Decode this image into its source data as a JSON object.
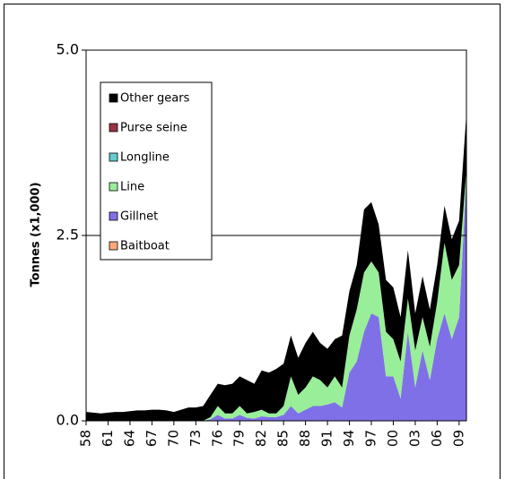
{
  "chart_data": {
    "type": "stacked_area",
    "y_label": "Tonnes (x1,000)",
    "x": [
      1958,
      1959,
      1960,
      1961,
      1962,
      1963,
      1964,
      1965,
      1966,
      1967,
      1968,
      1969,
      1970,
      1971,
      1972,
      1973,
      1974,
      1975,
      1976,
      1977,
      1978,
      1979,
      1980,
      1981,
      1982,
      1983,
      1984,
      1985,
      1986,
      1987,
      1988,
      1989,
      1990,
      1991,
      1992,
      1993,
      1994,
      1995,
      1996,
      1997,
      1998,
      1999,
      2000,
      2001,
      2002,
      2003,
      2004,
      2005,
      2006,
      2007,
      2008,
      2009,
      2010
    ],
    "xlim": [
      1958,
      2010
    ],
    "xticks": [
      {
        "value": 1958,
        "label": "58"
      },
      {
        "value": 1961,
        "label": "61"
      },
      {
        "value": 1964,
        "label": "64"
      },
      {
        "value": 1967,
        "label": "67"
      },
      {
        "value": 1970,
        "label": "70"
      },
      {
        "value": 1973,
        "label": "73"
      },
      {
        "value": 1976,
        "label": "76"
      },
      {
        "value": 1979,
        "label": "79"
      },
      {
        "value": 1982,
        "label": "82"
      },
      {
        "value": 1985,
        "label": "85"
      },
      {
        "value": 1988,
        "label": "88"
      },
      {
        "value": 1991,
        "label": "91"
      },
      {
        "value": 1994,
        "label": "94"
      },
      {
        "value": 1997,
        "label": "97"
      },
      {
        "value": 2000,
        "label": "00"
      },
      {
        "value": 2003,
        "label": "03"
      },
      {
        "value": 2006,
        "label": "06"
      },
      {
        "value": 2009,
        "label": "09"
      }
    ],
    "ylim": [
      0,
      5
    ],
    "yticks": [
      {
        "value": 0,
        "label": "0.0"
      },
      {
        "value": 2.5,
        "label": "2.5"
      },
      {
        "value": 5,
        "label": "5.0"
      }
    ],
    "grid": true,
    "legend": "upper left",
    "series": [
      {
        "name": "Baitboat",
        "color": "#ffaa77",
        "values": [
          0,
          0,
          0,
          0,
          0,
          0,
          0,
          0,
          0,
          0,
          0,
          0,
          0,
          0,
          0,
          0,
          0,
          0,
          0,
          0,
          0,
          0,
          0,
          0,
          0,
          0,
          0,
          0,
          0,
          0,
          0,
          0,
          0,
          0,
          0,
          0,
          0,
          0,
          0,
          0,
          0,
          0,
          0,
          0,
          0,
          0,
          0,
          0,
          0,
          0,
          0,
          0,
          0
        ]
      },
      {
        "name": "Gillnet",
        "color": "#8070e8",
        "values": [
          0,
          0,
          0,
          0,
          0,
          0,
          0,
          0,
          0,
          0,
          0,
          0,
          0,
          0,
          0,
          0,
          0,
          0.02,
          0.08,
          0.03,
          0.03,
          0.08,
          0.04,
          0.03,
          0.06,
          0.05,
          0.05,
          0.08,
          0.2,
          0.1,
          0.15,
          0.2,
          0.2,
          0.22,
          0.25,
          0.18,
          0.65,
          0.8,
          1.2,
          1.45,
          1.4,
          0.6,
          0.6,
          0.3,
          1.2,
          0.45,
          0.95,
          0.55,
          1.1,
          1.45,
          1.1,
          1.4,
          3.3
        ]
      },
      {
        "name": "Line",
        "color": "#99ee99",
        "values": [
          0,
          0,
          0,
          0,
          0,
          0,
          0,
          0,
          0,
          0,
          0,
          0,
          0,
          0,
          0,
          0,
          0,
          0.03,
          0.12,
          0.07,
          0.07,
          0.12,
          0.06,
          0.09,
          0.09,
          0.05,
          0.05,
          0.12,
          0.4,
          0.25,
          0.3,
          0.4,
          0.35,
          0.23,
          0.35,
          0.27,
          0.5,
          0.7,
          0.8,
          0.7,
          0.6,
          0.6,
          0.5,
          0.5,
          0.45,
          0.5,
          0.45,
          0.45,
          0.5,
          0.95,
          0.8,
          0.7,
          0.1
        ]
      },
      {
        "name": "Longline",
        "color": "#66cccc",
        "values": [
          0,
          0,
          0,
          0,
          0,
          0,
          0,
          0,
          0,
          0,
          0,
          0,
          0,
          0,
          0,
          0,
          0,
          0,
          0,
          0,
          0,
          0,
          0,
          0,
          0,
          0,
          0,
          0,
          0,
          0,
          0,
          0,
          0,
          0,
          0,
          0,
          0,
          0,
          0,
          0,
          0,
          0,
          0,
          0,
          0,
          0,
          0,
          0,
          0,
          0,
          0,
          0,
          0
        ]
      },
      {
        "name": "Purse seine",
        "color": "#993344",
        "values": [
          0,
          0,
          0,
          0,
          0,
          0,
          0,
          0,
          0,
          0,
          0,
          0,
          0,
          0,
          0,
          0,
          0,
          0,
          0,
          0,
          0,
          0,
          0,
          0,
          0,
          0,
          0,
          0,
          0,
          0,
          0,
          0,
          0,
          0,
          0,
          0,
          0,
          0,
          0,
          0,
          0,
          0,
          0,
          0,
          0,
          0,
          0,
          0,
          0,
          0,
          0,
          0,
          0
        ]
      },
      {
        "name": "Other gears",
        "color": "#000000",
        "values": [
          0.12,
          0.11,
          0.1,
          0.11,
          0.12,
          0.12,
          0.13,
          0.14,
          0.14,
          0.15,
          0.15,
          0.14,
          0.12,
          0.15,
          0.18,
          0.18,
          0.2,
          0.3,
          0.3,
          0.38,
          0.4,
          0.4,
          0.45,
          0.38,
          0.53,
          0.55,
          0.6,
          0.57,
          0.55,
          0.5,
          0.6,
          0.6,
          0.5,
          0.52,
          0.5,
          0.7,
          0.6,
          0.6,
          0.85,
          0.8,
          0.65,
          0.7,
          0.7,
          0.6,
          0.65,
          0.5,
          0.55,
          0.5,
          0.5,
          0.5,
          0.55,
          0.6,
          0.75
        ]
      }
    ]
  }
}
